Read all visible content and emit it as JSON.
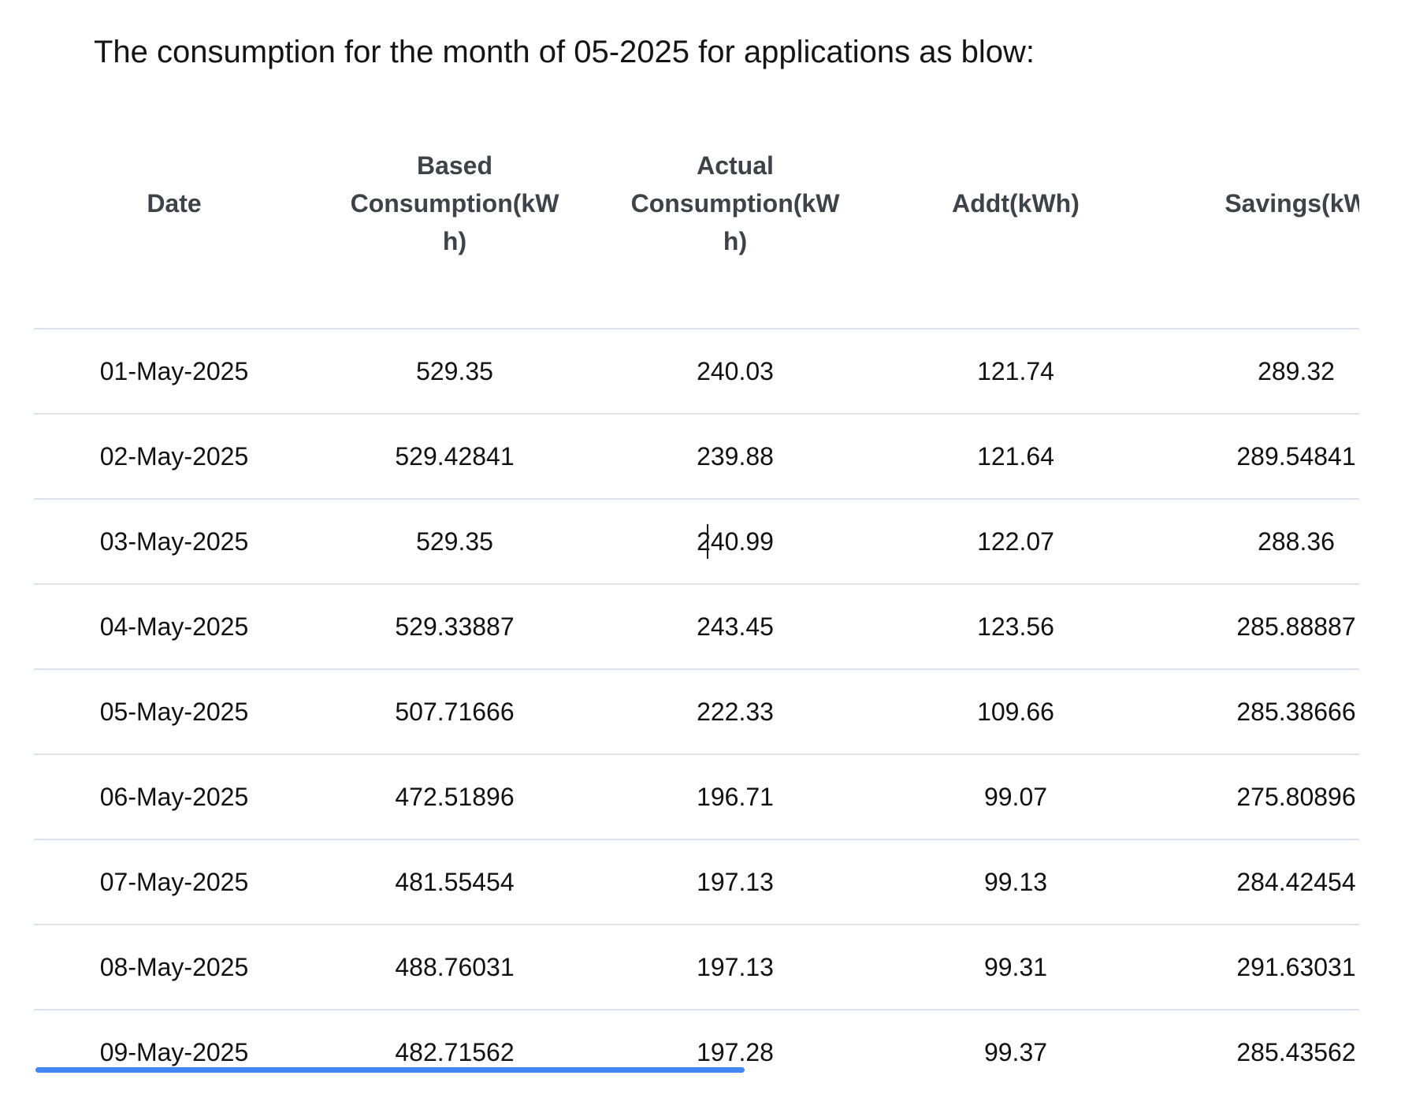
{
  "title": "The consumption for the month of 05-2025 for applications as blow:",
  "table": {
    "headers": [
      {
        "lines": [
          "Date"
        ]
      },
      {
        "lines": [
          "Based",
          "Consumption(kW",
          "h)"
        ]
      },
      {
        "lines": [
          "Actual",
          "Consumption(kW",
          "h)"
        ]
      },
      {
        "lines": [
          "Addt(kWh)"
        ]
      },
      {
        "lines": [
          "Savings(kW"
        ]
      }
    ],
    "rows": [
      [
        "01-May-2025",
        "529.35",
        "240.03",
        "121.74",
        "289.32"
      ],
      [
        "02-May-2025",
        "529.42841",
        "239.88",
        "121.64",
        "289.54841"
      ],
      [
        "03-May-2025",
        "529.35",
        "240.99",
        "122.07",
        "288.36"
      ],
      [
        "04-May-2025",
        "529.33887",
        "243.45",
        "123.56",
        "285.88887"
      ],
      [
        "05-May-2025",
        "507.71666",
        "222.33",
        "109.66",
        "285.38666"
      ],
      [
        "06-May-2025",
        "472.51896",
        "196.71",
        "99.07",
        "275.80896"
      ],
      [
        "07-May-2025",
        "481.55454",
        "197.13",
        "99.13",
        "284.42454"
      ],
      [
        "08-May-2025",
        "488.76031",
        "197.13",
        "99.31",
        "291.63031"
      ],
      [
        "09-May-2025",
        "482.71562",
        "197.28",
        "99.37",
        "285.43562"
      ]
    ]
  },
  "colors": {
    "scrollbar_thumb": "#4285f4",
    "row_divider": "#dde2e7",
    "header_text": "#3d4349",
    "body_text": "#111111"
  }
}
